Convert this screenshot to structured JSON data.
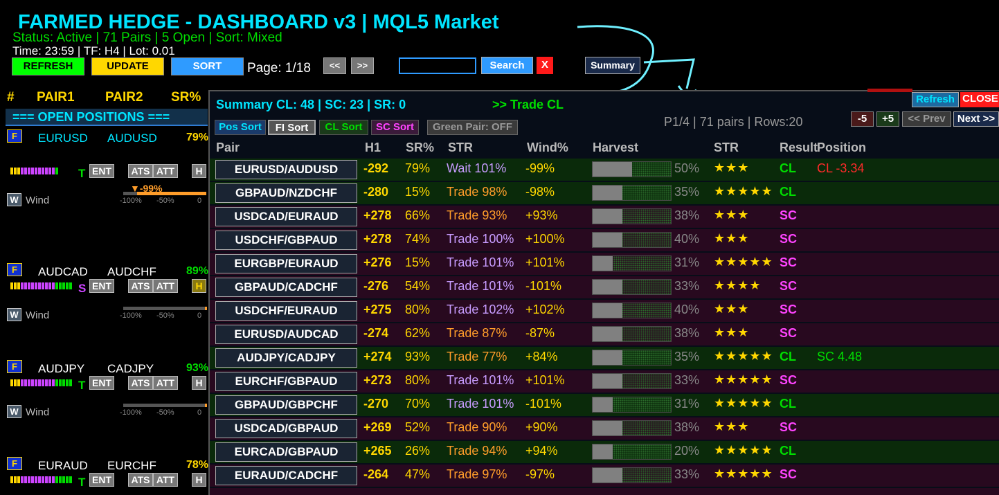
{
  "header": {
    "title": "FARMED HEDGE - DASHBOARD v3 | MQL5 Market",
    "status": "Status: Active | 71 Pairs | 5 Open | Sort: Mixed",
    "time": "Time: 23:59 | TF: H4 | Lot: 0.01",
    "refresh_label": "REFRESH",
    "update_label": "UPDATE",
    "sort_label": "SORT",
    "page_label": "Page: 1/18",
    "prev_label": "<<",
    "next_label": ">>",
    "search_value": "",
    "search_label": "Search",
    "clear_label": "X",
    "summary_label": "Summary"
  },
  "main_columns": {
    "num": "#",
    "pair1": "PAIR1",
    "pair2": "PAIR2",
    "sr": "SR%"
  },
  "open_positions_label": "=== OPEN POSITIONS ===",
  "positions": [
    {
      "f": "F",
      "pair1": "EURUSD",
      "pair2": "AUDUSD",
      "sr": "79%",
      "sr_color": "#ffd700",
      "signal": "T",
      "signal_color": "#00dd00",
      "ent": "ENT",
      "ats": "ATS",
      "att": "ATT",
      "h": "H",
      "w": "W",
      "wind": "Wind",
      "wind_value": "▼-99%",
      "scale": [
        "-100%",
        "-50%",
        "0"
      ],
      "pair1_color": "#00e5ff",
      "pair2_color": "#00e5ff"
    },
    {
      "f": "F",
      "pair1": "AUDCAD",
      "pair2": "AUDCHF",
      "sr": "89%",
      "sr_color": "#00dd00",
      "signal": "S",
      "signal_color": "#cc44ff",
      "ent": "ENT",
      "ats": "ATS",
      "att": "ATT",
      "h": "H",
      "w": "W",
      "wind": "Wind",
      "wind_value": "",
      "scale": [
        "-100%",
        "-50%",
        "0"
      ],
      "pair1_color": "#ffffff",
      "pair2_color": "#ffffff"
    },
    {
      "f": "F",
      "pair1": "AUDJPY",
      "pair2": "CADJPY",
      "sr": "93%",
      "sr_color": "#00dd00",
      "signal": "T",
      "signal_color": "#00dd00",
      "ent": "ENT",
      "ats": "ATS",
      "att": "ATT",
      "h": "H",
      "w": "W",
      "wind": "Wind",
      "wind_value": "",
      "scale": [
        "-100%",
        "-50%",
        "0"
      ],
      "pair1_color": "#ffffff",
      "pair2_color": "#ffffff"
    },
    {
      "f": "F",
      "pair1": "EURAUD",
      "pair2": "EURCHF",
      "sr": "78%",
      "sr_color": "#ffd700",
      "signal": "T",
      "signal_color": "#00dd00",
      "ent": "ENT",
      "ats": "ATS",
      "att": "ATT",
      "h": "H",
      "w": "",
      "wind": "",
      "wind_value": "",
      "scale": [],
      "pair1_color": "#ffffff",
      "pair2_color": "#ffffff"
    }
  ],
  "summary": {
    "title": "Summary   CL: 48  |  SC: 23  |  SR: 0",
    "trade_cl": ">> Trade CL",
    "refresh_label": "Refresh",
    "close_label": "CLOSE",
    "page_info": "P1/4 | 71 pairs | Rows:20",
    "minus5": "-5",
    "plus5": "+5",
    "prev": "<< Prev",
    "next": "Next >>",
    "sorts": [
      "Pos Sort",
      "FI Sort",
      "CL Sort",
      "SC Sort",
      "Green Pair: OFF"
    ],
    "headers": [
      "Pair",
      "H1",
      "SR%",
      "STR",
      "Wind%",
      "Harvest",
      "STR",
      "Result",
      "Position"
    ],
    "rows": [
      {
        "pair": "EURUSD/AUDUSD",
        "h1": "-292",
        "sr": "79%",
        "str_label": "Wait 101%",
        "str_color": "#c89cff",
        "wind": "-99%",
        "harvest": "50%",
        "harvest_fill": 0.5,
        "stars": "★★★",
        "result": "CL",
        "position": "CL -3.34",
        "position_color": "#ff2a2a",
        "bg": "#0a2a0a"
      },
      {
        "pair": "GBPAUD/NZDCHF",
        "h1": "-280",
        "sr": "15%",
        "str_label": "Trade 98%",
        "str_color": "#ff9d2a",
        "wind": "-98%",
        "harvest": "35%",
        "harvest_fill": 0.38,
        "stars": "★★★★★",
        "result": "CL",
        "position": "",
        "position_color": "#00dd00",
        "bg": "#0a2a0a"
      },
      {
        "pair": "USDCAD/EURAUD",
        "h1": "+278",
        "sr": "66%",
        "str_label": "Trade 93%",
        "str_color": "#ff9d2a",
        "wind": "+93%",
        "harvest": "38%",
        "harvest_fill": 0.38,
        "stars": "★★★",
        "result": "SC",
        "position": "",
        "position_color": "#00dd00",
        "bg": "#28091f"
      },
      {
        "pair": "USDCHF/GBPAUD",
        "h1": "+278",
        "sr": "74%",
        "str_label": "Trade 100%",
        "str_color": "#c89cff",
        "wind": "+100%",
        "harvest": "40%",
        "harvest_fill": 0.38,
        "stars": "★★★",
        "result": "SC",
        "position": "",
        "position_color": "#00dd00",
        "bg": "#28091f"
      },
      {
        "pair": "EURGBP/EURAUD",
        "h1": "+276",
        "sr": "15%",
        "str_label": "Trade 101%",
        "str_color": "#c89cff",
        "wind": "+101%",
        "harvest": "31%",
        "harvest_fill": 0.26,
        "stars": "★★★★★",
        "result": "SC",
        "position": "",
        "position_color": "#00dd00",
        "bg": "#28091f"
      },
      {
        "pair": "GBPAUD/CADCHF",
        "h1": "-276",
        "sr": "54%",
        "str_label": "Trade 101%",
        "str_color": "#c89cff",
        "wind": "-101%",
        "harvest": "33%",
        "harvest_fill": 0.38,
        "stars": "★★★★",
        "result": "SC",
        "position": "",
        "position_color": "#00dd00",
        "bg": "#28091f"
      },
      {
        "pair": "USDCHF/EURAUD",
        "h1": "+275",
        "sr": "80%",
        "str_label": "Trade 102%",
        "str_color": "#c89cff",
        "wind": "+102%",
        "harvest": "40%",
        "harvest_fill": 0.38,
        "stars": "★★★",
        "result": "SC",
        "position": "",
        "position_color": "#00dd00",
        "bg": "#28091f"
      },
      {
        "pair": "EURUSD/AUDCAD",
        "h1": "-274",
        "sr": "62%",
        "str_label": "Trade 87%",
        "str_color": "#ff9d2a",
        "wind": "-87%",
        "harvest": "38%",
        "harvest_fill": 0.38,
        "stars": "★★★",
        "result": "SC",
        "position": "",
        "position_color": "#00dd00",
        "bg": "#28091f"
      },
      {
        "pair": "AUDJPY/CADJPY",
        "h1": "+274",
        "sr": "93%",
        "str_label": "Trade 77%",
        "str_color": "#ff9d2a",
        "wind": "+84%",
        "harvest": "35%",
        "harvest_fill": 0.38,
        "stars": "★★★★★",
        "result": "CL",
        "position": "SC 4.48",
        "position_color": "#00dd00",
        "bg": "#0a2a0a"
      },
      {
        "pair": "EURCHF/GBPAUD",
        "h1": "+273",
        "sr": "80%",
        "str_label": "Trade 101%",
        "str_color": "#c89cff",
        "wind": "+101%",
        "harvest": "33%",
        "harvest_fill": 0.38,
        "stars": "★★★★★",
        "result": "SC",
        "position": "",
        "position_color": "#00dd00",
        "bg": "#28091f"
      },
      {
        "pair": "GBPAUD/GBPCHF",
        "h1": "-270",
        "sr": "70%",
        "str_label": "Trade 101%",
        "str_color": "#c89cff",
        "wind": "-101%",
        "harvest": "31%",
        "harvest_fill": 0.26,
        "stars": "★★★★★",
        "result": "CL",
        "position": "",
        "position_color": "#00dd00",
        "bg": "#0a2a0a"
      },
      {
        "pair": "USDCAD/GBPAUD",
        "h1": "+269",
        "sr": "52%",
        "str_label": "Trade 90%",
        "str_color": "#ff9d2a",
        "wind": "+90%",
        "harvest": "38%",
        "harvest_fill": 0.38,
        "stars": "★★★",
        "result": "SC",
        "position": "",
        "position_color": "#00dd00",
        "bg": "#28091f"
      },
      {
        "pair": "EURCAD/GBPAUD",
        "h1": "+265",
        "sr": "26%",
        "str_label": "Trade 94%",
        "str_color": "#ff9d2a",
        "wind": "+94%",
        "harvest": "20%",
        "harvest_fill": 0.26,
        "stars": "★★★★★",
        "result": "CL",
        "position": "",
        "position_color": "#00dd00",
        "bg": "#0a2a0a"
      },
      {
        "pair": "EURAUD/CADCHF",
        "h1": "-264",
        "sr": "47%",
        "str_label": "Trade 97%",
        "str_color": "#ff9d2a",
        "wind": "-97%",
        "harvest": "33%",
        "harvest_fill": 0.38,
        "stars": "★★★★★",
        "result": "SC",
        "position": "",
        "position_color": "#00dd00",
        "bg": "#28091f"
      }
    ]
  }
}
